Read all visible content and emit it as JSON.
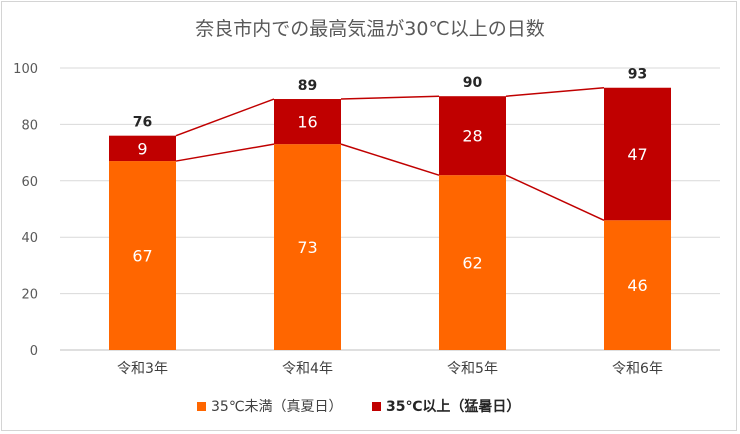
{
  "chart_data": {
    "type": "bar",
    "stacked": true,
    "title": "奈良市内での最高気温が30℃以上の日数",
    "categories": [
      "令和3年",
      "令和4年",
      "令和5年",
      "令和6年"
    ],
    "series": [
      {
        "name": "35℃未満（真夏日）",
        "values": [
          67,
          73,
          62,
          46
        ],
        "color": "#ff6600"
      },
      {
        "name": "35℃以上（猛暑日）",
        "values": [
          9,
          16,
          28,
          47
        ],
        "color": "#c00000"
      }
    ],
    "totals": [
      76,
      89,
      90,
      93
    ],
    "ylim": [
      0,
      100
    ],
    "yticks": [
      0,
      20,
      40,
      60,
      80,
      100
    ],
    "grid": true,
    "legend_position": "bottom",
    "connector_color": "#c00000"
  }
}
